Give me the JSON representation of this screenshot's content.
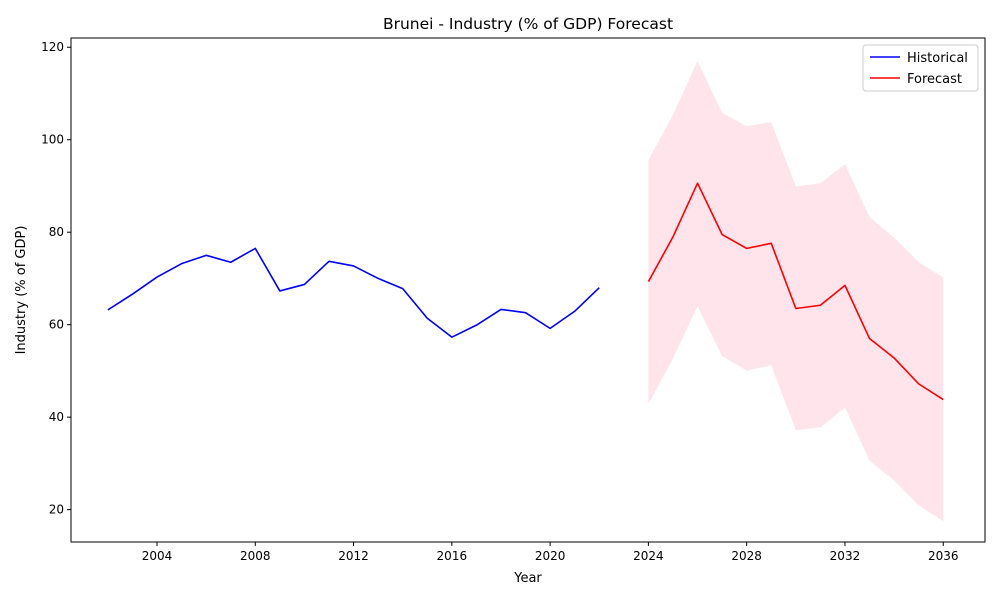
{
  "chart_data": {
    "type": "line",
    "title": "Brunei - Industry (% of GDP) Forecast",
    "xlabel": "Year",
    "ylabel": "Industry (% of GDP)",
    "xlim": [
      2000.5,
      2037.7
    ],
    "ylim": [
      13.0,
      122.0
    ],
    "x_ticks": [
      2004,
      2008,
      2012,
      2016,
      2020,
      2024,
      2028,
      2032,
      2036
    ],
    "y_ticks": [
      20,
      40,
      60,
      80,
      100,
      120
    ],
    "grid": false,
    "legend_position": "top-right",
    "series": [
      {
        "name": "Historical",
        "color": "#0000ff",
        "x": [
          2002,
          2003,
          2004,
          2005,
          2006,
          2007,
          2008,
          2009,
          2010,
          2011,
          2012,
          2013,
          2014,
          2015,
          2016,
          2017,
          2018,
          2019,
          2020,
          2021,
          2022
        ],
        "y": [
          63.2,
          66.6,
          70.3,
          73.2,
          75.0,
          73.5,
          76.5,
          67.3,
          68.7,
          73.7,
          72.7,
          70.0,
          67.8,
          61.4,
          57.3,
          59.9,
          63.3,
          62.6,
          59.2,
          62.9,
          68.0
        ]
      },
      {
        "name": "Forecast",
        "color": "#ff0000",
        "x": [
          2024,
          2025,
          2026,
          2027,
          2028,
          2029,
          2030,
          2031,
          2032,
          2033,
          2034,
          2035,
          2036
        ],
        "y": [
          69.3,
          79.0,
          90.6,
          79.5,
          76.5,
          77.6,
          63.5,
          64.2,
          68.5,
          57.0,
          52.8,
          47.2,
          43.8
        ]
      }
    ],
    "confidence_band": {
      "color": "#ffe4ec",
      "x": [
        2024,
        2025,
        2026,
        2027,
        2028,
        2029,
        2030,
        2031,
        2032,
        2033,
        2034,
        2035,
        2036
      ],
      "upper": [
        95.6,
        105.4,
        117.0,
        105.8,
        102.9,
        103.8,
        89.9,
        90.6,
        94.7,
        83.3,
        78.8,
        73.5,
        70.2
      ],
      "lower": [
        42.9,
        52.7,
        64.0,
        53.2,
        50.1,
        51.2,
        37.2,
        37.8,
        42.1,
        30.6,
        26.3,
        20.9,
        17.5
      ]
    }
  }
}
